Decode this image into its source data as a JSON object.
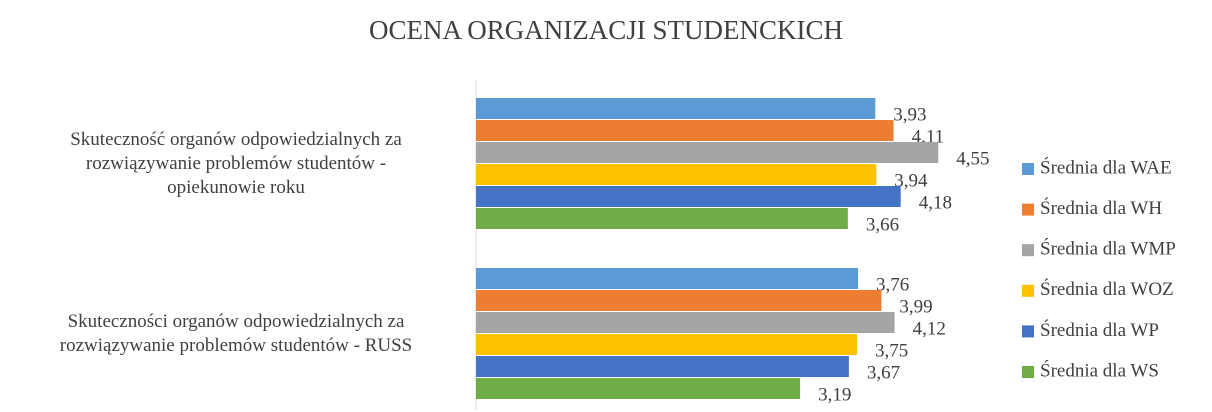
{
  "chart_data": {
    "type": "hbar",
    "title": "OCENA ORGANIZACJI STUDENCKICH",
    "categories": [
      "Skuteczność organów odpowiedzialnych za rozwiązywanie problemów studentów - opiekunowie roku",
      "Skuteczności organów odpowiedzialnych za rozwiązywanie problemów studentów - RUSS"
    ],
    "xlim": [
      0,
      5
    ],
    "legend": "right",
    "series": [
      {
        "name": "Średnia dla WAE",
        "color": "#5b9bd5",
        "values": [
          3.93,
          3.76
        ],
        "value_labels": [
          "3,93",
          "3,76"
        ]
      },
      {
        "name": "Średnia dla WH",
        "color": "#ed7d31",
        "values": [
          4.11,
          3.99
        ],
        "value_labels": [
          "4,11",
          "3,99"
        ]
      },
      {
        "name": "Średnia dla WMP",
        "color": "#a5a5a5",
        "values": [
          4.55,
          4.12
        ],
        "value_labels": [
          "4,55",
          "4,12"
        ]
      },
      {
        "name": "Średnia dla WOZ",
        "color": "#ffc000",
        "values": [
          3.94,
          3.75
        ],
        "value_labels": [
          "3,94",
          "3,75"
        ]
      },
      {
        "name": "Średnia dla WP",
        "color": "#4472c4",
        "values": [
          4.18,
          3.67
        ],
        "value_labels": [
          "4,18",
          "3,67"
        ]
      },
      {
        "name": "Średnia dla WS",
        "color": "#70ad47",
        "values": [
          3.66,
          3.19
        ],
        "value_labels": [
          "3,66",
          "3,19"
        ]
      }
    ]
  }
}
